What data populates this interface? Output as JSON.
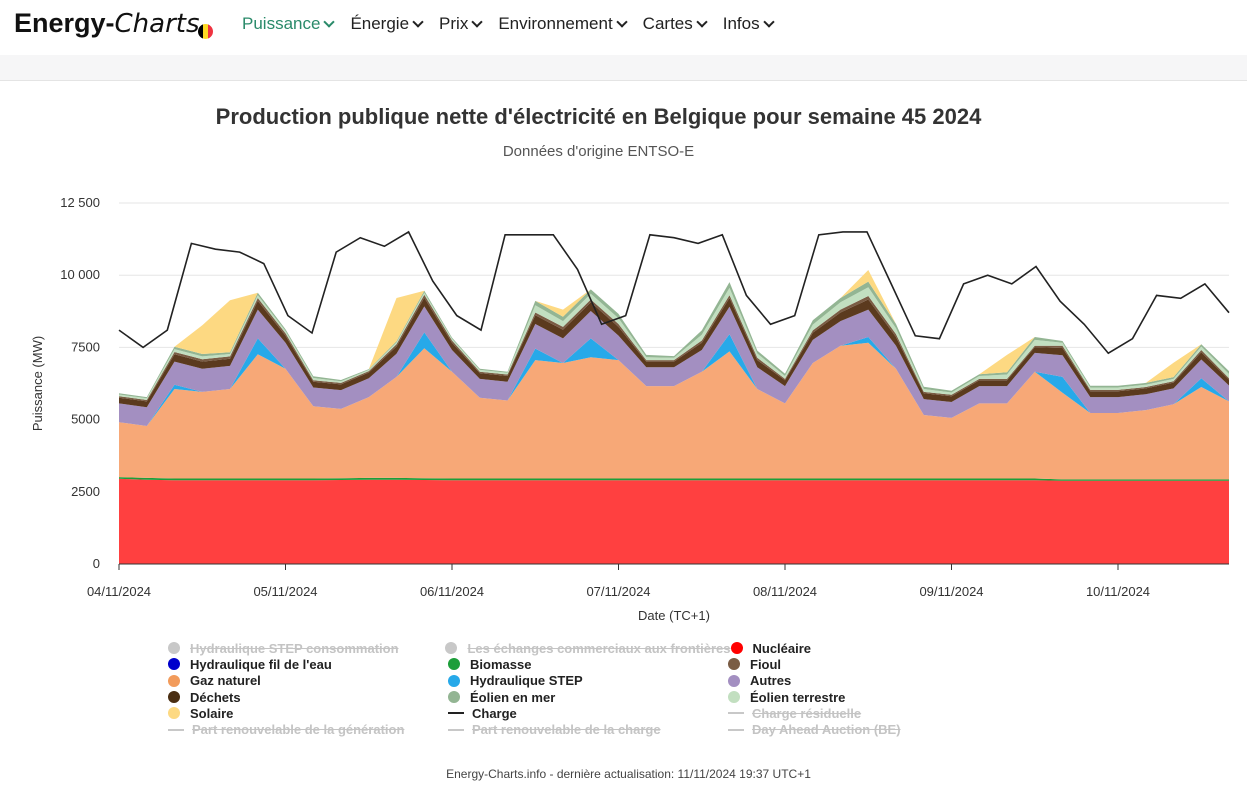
{
  "nav": {
    "brand_bold": "Energy-",
    "brand_italic": "Charts",
    "flag_colors": [
      "#000000",
      "#fdda24",
      "#ef3340"
    ],
    "items": [
      {
        "label": "Puissance",
        "active": true
      },
      {
        "label": "Énergie",
        "active": false
      },
      {
        "label": "Prix",
        "active": false
      },
      {
        "label": "Environnement",
        "active": false
      },
      {
        "label": "Cartes",
        "active": false
      },
      {
        "label": "Infos",
        "active": false
      }
    ]
  },
  "chart_data": {
    "type": "area",
    "stacked": true,
    "title": "Production publique nette d'électricité en Belgique pour semaine 45 2024",
    "subtitle": "Données d'origine ENTSO-E",
    "xlabel": "Date (TC+1)",
    "ylabel": "Puissance (MW)",
    "ylim": [
      0,
      12500
    ],
    "yticks": [
      "0",
      "2500",
      "5000",
      "7500",
      "10 000",
      "12 500"
    ],
    "xticks": [
      "04/11/2024",
      "05/11/2024",
      "06/11/2024",
      "07/11/2024",
      "08/11/2024",
      "09/11/2024",
      "10/11/2024"
    ],
    "xlim": [
      0,
      160
    ],
    "x_step_hours": 4,
    "grid": true,
    "series": [
      {
        "name": "Nucléaire",
        "color": "#ff4040",
        "values": [
          2950,
          2920,
          2900,
          2900,
          2900,
          2900,
          2900,
          2900,
          2910,
          2920,
          2920,
          2910,
          2900,
          2900,
          2900,
          2900,
          2900,
          2900,
          2900,
          2900,
          2900,
          2900,
          2900,
          2900,
          2900,
          2900,
          2900,
          2900,
          2900,
          2900,
          2900,
          2900,
          2900,
          2900,
          2880,
          2880,
          2880,
          2880,
          2880,
          2880,
          2880
        ]
      },
      {
        "name": "Biomasse",
        "color": "#1d9e3a",
        "values": [
          60,
          60,
          60,
          60,
          60,
          60,
          60,
          60,
          60,
          60,
          60,
          60,
          60,
          60,
          60,
          60,
          60,
          60,
          60,
          60,
          60,
          60,
          60,
          60,
          60,
          60,
          60,
          60,
          60,
          60,
          60,
          60,
          60,
          60,
          50,
          50,
          50,
          50,
          50,
          50,
          50
        ]
      },
      {
        "name": "Gaz naturel",
        "color": "#f7a877",
        "values": [
          1900,
          1800,
          3100,
          3000,
          3100,
          4300,
          3800,
          2500,
          2400,
          2800,
          3500,
          4500,
          3700,
          2800,
          2700,
          4100,
          4000,
          4200,
          4100,
          3200,
          3200,
          3700,
          4400,
          3100,
          2600,
          4000,
          4600,
          4700,
          3800,
          2200,
          2100,
          2600,
          2600,
          3700,
          3000,
          2300,
          2300,
          2400,
          2600,
          3200,
          2700
        ]
      },
      {
        "name": "Hydraulique STEP",
        "color": "#27a9e9",
        "values": [
          0,
          0,
          150,
          0,
          0,
          550,
          0,
          0,
          0,
          0,
          0,
          550,
          0,
          0,
          0,
          400,
          0,
          650,
          0,
          0,
          0,
          0,
          600,
          0,
          0,
          0,
          0,
          200,
          0,
          0,
          0,
          0,
          0,
          0,
          550,
          0,
          0,
          0,
          0,
          300,
          0
        ]
      },
      {
        "name": "Autres",
        "color": "#a38fc1",
        "values": [
          650,
          650,
          800,
          800,
          800,
          1000,
          900,
          650,
          650,
          650,
          800,
          900,
          750,
          650,
          650,
          850,
          850,
          950,
          850,
          650,
          650,
          750,
          950,
          750,
          600,
          800,
          850,
          950,
          800,
          550,
          550,
          600,
          600,
          650,
          750,
          550,
          550,
          550,
          550,
          650,
          550
        ]
      },
      {
        "name": "Déchets",
        "color": "#5b3a1e",
        "values": [
          200,
          200,
          250,
          250,
          250,
          300,
          250,
          200,
          200,
          200,
          250,
          300,
          250,
          200,
          200,
          300,
          300,
          300,
          300,
          200,
          200,
          250,
          300,
          250,
          200,
          250,
          300,
          350,
          300,
          200,
          200,
          200,
          200,
          200,
          250,
          200,
          200,
          200,
          200,
          250,
          200
        ]
      },
      {
        "name": "Fioul",
        "color": "#7a5c44",
        "values": [
          50,
          50,
          80,
          80,
          80,
          100,
          80,
          50,
          50,
          50,
          80,
          100,
          80,
          50,
          50,
          100,
          100,
          100,
          100,
          50,
          50,
          80,
          100,
          80,
          50,
          80,
          100,
          120,
          100,
          50,
          50,
          50,
          50,
          50,
          80,
          50,
          50,
          50,
          50,
          80,
          50
        ]
      },
      {
        "name": "Éolien terrestre",
        "color": "#c2dfc0",
        "values": [
          60,
          60,
          100,
          100,
          80,
          100,
          80,
          80,
          60,
          40,
          60,
          80,
          60,
          60,
          60,
          250,
          200,
          200,
          200,
          100,
          80,
          200,
          250,
          150,
          100,
          200,
          250,
          300,
          200,
          100,
          80,
          100,
          150,
          200,
          100,
          80,
          80,
          80,
          80,
          120,
          150
        ]
      },
      {
        "name": "Éolien en mer",
        "color": "#93b593",
        "values": [
          40,
          40,
          80,
          80,
          60,
          80,
          60,
          60,
          40,
          30,
          40,
          60,
          40,
          40,
          40,
          150,
          150,
          150,
          150,
          80,
          60,
          150,
          200,
          100,
          80,
          150,
          150,
          200,
          150,
          80,
          60,
          60,
          80,
          100,
          60,
          60,
          60,
          60,
          60,
          80,
          100
        ]
      },
      {
        "name": "Solaire",
        "color": "#fdd982",
        "values": [
          0,
          0,
          0,
          1000,
          1800,
          0,
          0,
          0,
          0,
          0,
          1500,
          0,
          0,
          0,
          0,
          0,
          250,
          0,
          0,
          0,
          0,
          0,
          0,
          0,
          0,
          0,
          0,
          400,
          0,
          0,
          0,
          0,
          600,
          0,
          0,
          0,
          0,
          0,
          500,
          0,
          0
        ]
      }
    ],
    "line_series": [
      {
        "name": "Charge",
        "color": "#222222",
        "values": [
          8100,
          7500,
          8100,
          11100,
          10900,
          10800,
          10400,
          8600,
          8000,
          10800,
          11300,
          11000,
          11500,
          9800,
          8600,
          8100,
          11400,
          11400,
          11400,
          10200,
          8300,
          8600,
          11400,
          11300,
          11100,
          11400,
          9300,
          8300,
          8600,
          11400,
          11500,
          11500,
          9700,
          7900,
          7800,
          9700,
          10000,
          9700,
          10300,
          9100,
          8300,
          7300,
          7800,
          9300,
          9200,
          9700,
          8700
        ]
      },
      {
        "name": "Charge",
        "comment": "line points every 3.4h",
        "color": "#222222",
        "values": []
      }
    ],
    "legend": [
      {
        "name": "Hydraulique STEP consommation",
        "color": "#c8c8c8",
        "marker": "dot",
        "enabled": false
      },
      {
        "name": "Les échanges commerciaux aux frontières",
        "color": "#c8c8c8",
        "marker": "dot",
        "enabled": false
      },
      {
        "name": "Nucléaire",
        "color": "#ff0000",
        "marker": "dot",
        "enabled": true
      },
      {
        "name": "Hydraulique fil de l'eau",
        "color": "#0000cc",
        "marker": "dot",
        "enabled": true
      },
      {
        "name": "Biomasse",
        "color": "#1d9e3a",
        "marker": "dot",
        "enabled": true
      },
      {
        "name": "Fioul",
        "color": "#7a5c44",
        "marker": "dot",
        "enabled": true
      },
      {
        "name": "Gaz naturel",
        "color": "#f29b5b",
        "marker": "dot",
        "enabled": true
      },
      {
        "name": "Hydraulique STEP",
        "color": "#27a9e9",
        "marker": "dot",
        "enabled": true
      },
      {
        "name": "Autres",
        "color": "#a38fc1",
        "marker": "dot",
        "enabled": true
      },
      {
        "name": "Déchets",
        "color": "#4a2e12",
        "marker": "dot",
        "enabled": true
      },
      {
        "name": "Éolien en mer",
        "color": "#93b593",
        "marker": "dot",
        "enabled": true
      },
      {
        "name": "Éolien terrestre",
        "color": "#c2dfc0",
        "marker": "dot",
        "enabled": true
      },
      {
        "name": "Solaire",
        "color": "#fdd982",
        "marker": "dot",
        "enabled": true
      },
      {
        "name": "Charge",
        "color": "#222222",
        "marker": "line",
        "enabled": true
      },
      {
        "name": "Charge résiduelle",
        "color": "#c8c8c8",
        "marker": "line",
        "enabled": false
      },
      {
        "name": "Part renouvelable de la génération",
        "color": "#c8c8c8",
        "marker": "line",
        "enabled": false
      },
      {
        "name": "Part renouvelable de la charge",
        "color": "#c8c8c8",
        "marker": "line",
        "enabled": false
      },
      {
        "name": "Day Ahead Auction (BE)",
        "color": "#c8c8c8",
        "marker": "line",
        "enabled": false
      }
    ]
  },
  "footer": "Energy-Charts.info - dernière actualisation: 11/11/2024 19:37 UTC+1"
}
